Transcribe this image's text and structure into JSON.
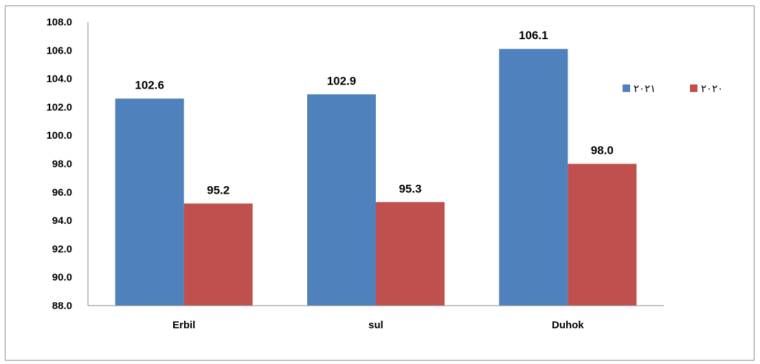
{
  "chart_data": {
    "type": "bar",
    "categories": [
      "Erbil",
      "sul",
      "Duhok"
    ],
    "series": [
      {
        "name": "٢٠٢١",
        "color": "#4f81bd",
        "values": [
          102.6,
          102.9,
          106.1
        ]
      },
      {
        "name": "٢٠٢٠",
        "color": "#c0504d",
        "values": [
          95.2,
          95.3,
          98.0
        ]
      }
    ],
    "ylim": [
      88.0,
      108.0
    ],
    "ytick_step": 2.0,
    "yticks": [
      "88.0",
      "90.0",
      "92.0",
      "94.0",
      "96.0",
      "98.0",
      "100.0",
      "102.0",
      "104.0",
      "106.0",
      "108.0"
    ],
    "data_labels": true,
    "legend_position": "right",
    "grid": false
  }
}
